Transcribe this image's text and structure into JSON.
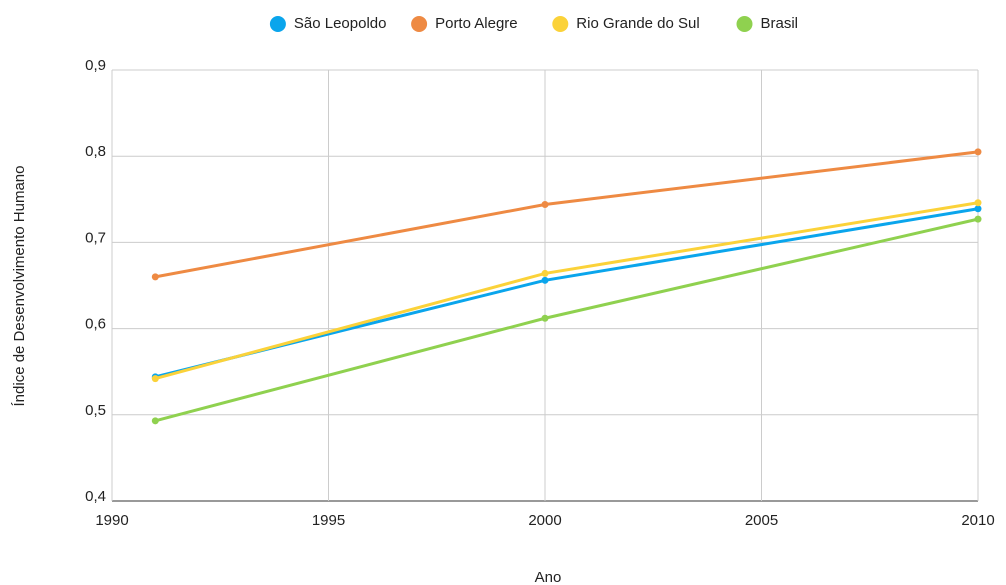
{
  "chart_data": {
    "type": "line",
    "x": [
      1991,
      2000,
      2010
    ],
    "series": [
      {
        "name": "São Leopoldo",
        "color": "#0aa5ec",
        "values": [
          0.544,
          0.656,
          0.739
        ]
      },
      {
        "name": "Porto Alegre",
        "color": "#ee8a43",
        "values": [
          0.66,
          0.744,
          0.805
        ]
      },
      {
        "name": "Rio Grande do Sul",
        "color": "#fbd239",
        "values": [
          0.542,
          0.664,
          0.746
        ]
      },
      {
        "name": "Brasil",
        "color": "#8fd14f",
        "values": [
          0.493,
          0.612,
          0.727
        ]
      }
    ],
    "xlabel": "Ano",
    "ylabel": "Índice de Desenvolvimento Humano",
    "xlim": [
      1990,
      2010
    ],
    "xticks": [
      1990,
      1995,
      2000,
      2005,
      2010
    ],
    "ylim": [
      0.4,
      0.9
    ],
    "yticks": [
      {
        "value": 0.4,
        "label": "0,4"
      },
      {
        "value": 0.5,
        "label": "0,5"
      },
      {
        "value": 0.6,
        "label": "0,6"
      },
      {
        "value": 0.7,
        "label": "0,7"
      },
      {
        "value": 0.8,
        "label": "0,8"
      },
      {
        "value": 0.9,
        "label": "0,9"
      }
    ],
    "grid": true,
    "legend": "top"
  }
}
